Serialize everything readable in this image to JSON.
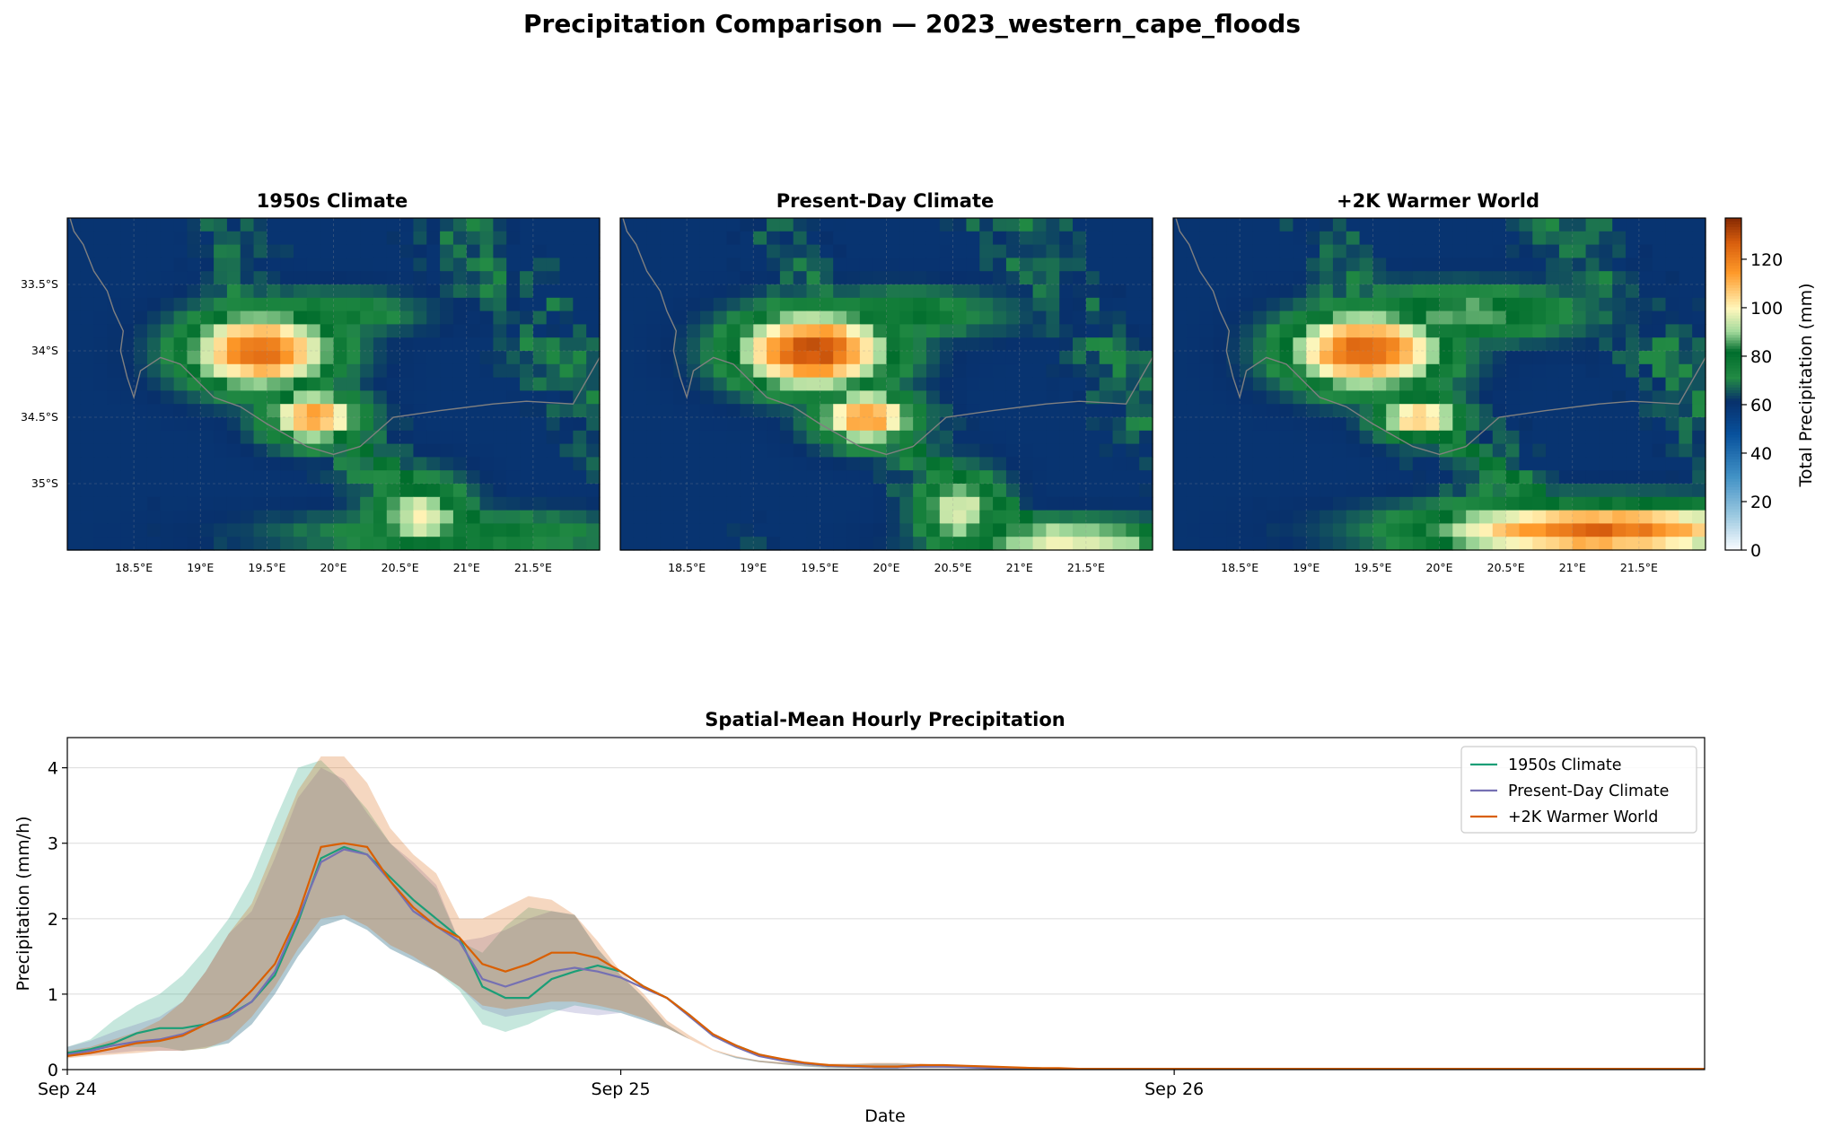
{
  "figure": {
    "title": "Precipitation Comparison — 2023_western_cape_floods"
  },
  "colors": {
    "1950s": "#1b9e77",
    "present": "#7570b3",
    "warmer": "#d95f02",
    "coast": "#808080"
  },
  "chart_data": [
    {
      "type": "heatmap",
      "title": "1950s Climate",
      "xticks": [
        "18.5°E",
        "19°E",
        "19.5°E",
        "20°E",
        "20.5°E",
        "21°E",
        "21.5°E"
      ],
      "yticks": [
        "33.5°S",
        "34°S",
        "34.5°S",
        "35°S"
      ],
      "lon_range": [
        18.0,
        22.0
      ],
      "lat_range": [
        -35.5,
        -33.0
      ],
      "colormap": "blue-green-yellow-orange",
      "blobs": [
        {
          "lon": 19.45,
          "lat": -34.0,
          "sx": 0.38,
          "sy": 0.2,
          "peak": 125
        },
        {
          "lon": 19.85,
          "lat": -34.5,
          "sx": 0.25,
          "sy": 0.14,
          "peak": 115
        },
        {
          "lon": 20.65,
          "lat": -35.25,
          "sx": 0.25,
          "sy": 0.2,
          "peak": 98
        },
        {
          "lon": 19.95,
          "lat": -33.72,
          "sx": 0.45,
          "sy": 0.12,
          "peak": 80
        },
        {
          "lon": 20.95,
          "lat": -35.38,
          "sx": 0.9,
          "sy": 0.12,
          "peak": 80
        }
      ],
      "colorbar": {
        "label": "Total Precipitation (mm)",
        "ticks": [
          0,
          20,
          40,
          60,
          80,
          100,
          120
        ],
        "range": [
          0,
          137
        ]
      }
    },
    {
      "type": "heatmap",
      "title": "Present-Day Climate",
      "xticks": [
        "18.5°E",
        "19°E",
        "19.5°E",
        "20°E",
        "20.5°E",
        "21°E",
        "21.5°E"
      ],
      "yticks": [],
      "lon_range": [
        18.0,
        22.0
      ],
      "lat_range": [
        -35.5,
        -33.0
      ],
      "colormap": "blue-green-yellow-orange",
      "blobs": [
        {
          "lon": 19.45,
          "lat": -34.0,
          "sx": 0.4,
          "sy": 0.2,
          "peak": 132
        },
        {
          "lon": 19.85,
          "lat": -34.5,
          "sx": 0.25,
          "sy": 0.14,
          "peak": 118
        },
        {
          "lon": 20.55,
          "lat": -35.2,
          "sx": 0.22,
          "sy": 0.2,
          "peak": 98
        },
        {
          "lon": 20.1,
          "lat": -33.72,
          "sx": 0.55,
          "sy": 0.13,
          "peak": 80
        },
        {
          "lon": 21.4,
          "lat": -35.42,
          "sx": 0.6,
          "sy": 0.1,
          "peak": 100
        }
      ],
      "colorbar": {
        "label": "Total Precipitation (mm)",
        "ticks": [
          0,
          20,
          40,
          60,
          80,
          100,
          120
        ],
        "range": [
          0,
          137
        ]
      }
    },
    {
      "type": "heatmap",
      "title": "+2K Warmer World",
      "xticks": [
        "18.5°E",
        "19°E",
        "19.5°E",
        "20°E",
        "20.5°E",
        "21°E",
        "21.5°E"
      ],
      "yticks": [],
      "lon_range": [
        18.0,
        22.0
      ],
      "lat_range": [
        -35.5,
        -33.0
      ],
      "colormap": "blue-green-yellow-orange",
      "blobs": [
        {
          "lon": 19.45,
          "lat": -34.0,
          "sx": 0.4,
          "sy": 0.2,
          "peak": 128
        },
        {
          "lon": 19.85,
          "lat": -34.5,
          "sx": 0.22,
          "sy": 0.12,
          "peak": 110
        },
        {
          "lon": 20.2,
          "lat": -33.72,
          "sx": 0.6,
          "sy": 0.14,
          "peak": 88
        },
        {
          "lon": 21.2,
          "lat": -35.35,
          "sx": 0.9,
          "sy": 0.14,
          "peak": 125
        }
      ],
      "colorbar": {
        "label": "Total Precipitation (mm)",
        "ticks": [
          0,
          20,
          40,
          60,
          80,
          100,
          120
        ],
        "range": [
          0,
          137
        ]
      }
    },
    {
      "type": "line",
      "title": "Spatial-Mean Hourly Precipitation",
      "xlabel": "Date",
      "ylabel": "Precipitation (mm/h)",
      "xticks": [
        "Sep 24",
        "Sep 25",
        "Sep 26"
      ],
      "xtick_hours": [
        0,
        24,
        48
      ],
      "xlim": [
        0,
        71
      ],
      "yticks": [
        0,
        1,
        2,
        3,
        4
      ],
      "ylim": [
        0,
        4.4
      ],
      "legend_position": "top-right",
      "grid": "y",
      "x_hours": [
        0,
        1,
        2,
        3,
        4,
        5,
        6,
        7,
        8,
        9,
        10,
        11,
        12,
        13,
        14,
        15,
        16,
        17,
        18,
        19,
        20,
        21,
        22,
        23,
        24,
        25,
        26,
        27,
        28,
        29,
        30,
        31,
        32,
        33,
        34,
        35,
        36,
        37,
        38,
        39,
        40,
        41,
        42,
        43,
        44,
        45,
        46,
        47,
        48,
        49,
        50,
        51,
        52,
        53,
        54,
        55,
        56,
        57,
        58,
        59,
        60,
        61,
        62,
        63,
        64,
        65,
        66,
        67,
        68,
        69,
        70,
        71
      ],
      "series": [
        {
          "name": "1950s Climate",
          "color": "#1b9e77",
          "values": [
            0.22,
            0.27,
            0.35,
            0.48,
            0.55,
            0.55,
            0.6,
            0.72,
            0.9,
            1.25,
            1.95,
            2.8,
            2.95,
            2.85,
            2.55,
            2.25,
            2.0,
            1.75,
            1.1,
            0.95,
            0.95,
            1.2,
            1.3,
            1.38,
            1.3,
            1.1,
            0.95,
            0.72,
            0.45,
            0.32,
            0.2,
            0.13,
            0.08,
            0.05,
            0.04,
            0.03,
            0.03,
            0.05,
            0.05,
            0.04,
            0.03,
            0.02,
            0.02,
            0.01,
            0.01,
            0.01,
            0.01,
            0.01,
            0.01,
            0.01,
            0.01,
            0.01,
            0.01,
            0.01,
            0.01,
            0.01,
            0.01,
            0.01,
            0.01,
            0.01,
            0.01,
            0.01,
            0.01,
            0.01,
            0.01,
            0.01,
            0.01,
            0.01,
            0.01,
            0.01,
            0.01,
            0.01
          ],
          "band_low": [
            0.2,
            0.25,
            0.3,
            0.3,
            0.3,
            0.25,
            0.28,
            0.35,
            0.6,
            1.0,
            1.5,
            1.9,
            2.0,
            1.85,
            1.6,
            1.45,
            1.3,
            1.05,
            0.6,
            0.5,
            0.6,
            0.75,
            0.85,
            0.8,
            0.75,
            0.65,
            0.55,
            0.4,
            0.25,
            0.15,
            0.1,
            0.07,
            0.04,
            0.02,
            0.02,
            0.02,
            0.02,
            0.02,
            0.02,
            0.02,
            0.01,
            0.01,
            0.01,
            0.0,
            0.0,
            0.0,
            0.0,
            0.0,
            0.0,
            0.0,
            0.0,
            0.0,
            0.0,
            0.0,
            0.0,
            0.0,
            0.0,
            0.0,
            0.0,
            0.0,
            0.0,
            0.0,
            0.0,
            0.0,
            0.0,
            0.0,
            0.0,
            0.0,
            0.0,
            0.0,
            0.0,
            0.0
          ],
          "band_high": [
            0.3,
            0.4,
            0.65,
            0.85,
            1.0,
            1.25,
            1.6,
            2.0,
            2.55,
            3.3,
            4.0,
            4.1,
            3.8,
            3.45,
            3.0,
            2.7,
            2.4,
            1.7,
            1.55,
            1.9,
            2.15,
            2.1,
            2.05,
            1.6,
            1.25,
            0.95,
            0.6,
            0.4,
            0.25,
            0.17,
            0.12,
            0.09,
            0.08,
            0.07,
            0.07,
            0.08,
            0.08,
            0.07,
            0.05,
            0.04,
            0.03,
            0.02,
            0.02,
            0.02,
            0.02,
            0.02,
            0.02,
            0.02,
            0.02,
            0.02,
            0.02,
            0.02,
            0.02,
            0.02,
            0.02,
            0.02,
            0.02,
            0.02,
            0.02,
            0.02,
            0.02,
            0.02,
            0.02,
            0.02,
            0.02,
            0.02,
            0.02,
            0.02,
            0.02,
            0.02,
            0.02,
            0.02
          ]
        },
        {
          "name": "Present-Day Climate",
          "color": "#7570b3",
          "values": [
            0.2,
            0.25,
            0.32,
            0.37,
            0.4,
            0.47,
            0.6,
            0.7,
            0.9,
            1.3,
            2.0,
            2.75,
            2.92,
            2.85,
            2.5,
            2.1,
            1.9,
            1.7,
            1.2,
            1.1,
            1.2,
            1.3,
            1.35,
            1.3,
            1.22,
            1.08,
            0.95,
            0.7,
            0.45,
            0.3,
            0.18,
            0.12,
            0.08,
            0.05,
            0.04,
            0.03,
            0.03,
            0.04,
            0.04,
            0.03,
            0.02,
            0.02,
            0.02,
            0.01,
            0.01,
            0.01,
            0.01,
            0.01,
            0.01,
            0.01,
            0.01,
            0.01,
            0.01,
            0.01,
            0.01,
            0.01,
            0.01,
            0.01,
            0.01,
            0.01,
            0.01,
            0.01,
            0.01,
            0.01,
            0.01,
            0.01,
            0.01,
            0.01,
            0.01,
            0.01,
            0.01,
            0.01
          ],
          "band_low": [
            0.18,
            0.2,
            0.22,
            0.25,
            0.25,
            0.25,
            0.3,
            0.35,
            0.6,
            1.0,
            1.5,
            1.9,
            2.0,
            1.85,
            1.6,
            1.45,
            1.3,
            1.1,
            0.8,
            0.7,
            0.75,
            0.8,
            0.75,
            0.72,
            0.75,
            0.65,
            0.55,
            0.4,
            0.25,
            0.15,
            0.1,
            0.07,
            0.04,
            0.02,
            0.02,
            0.02,
            0.02,
            0.02,
            0.02,
            0.02,
            0.01,
            0.01,
            0.01,
            0.0,
            0.0,
            0.0,
            0.0,
            0.0,
            0.0,
            0.0,
            0.0,
            0.0,
            0.0,
            0.0,
            0.0,
            0.0,
            0.0,
            0.0,
            0.0,
            0.0,
            0.0,
            0.0,
            0.0,
            0.0,
            0.0,
            0.0,
            0.0,
            0.0,
            0.0,
            0.0,
            0.0,
            0.0
          ],
          "band_high": [
            0.3,
            0.38,
            0.5,
            0.6,
            0.7,
            0.9,
            1.3,
            1.8,
            2.1,
            2.8,
            3.6,
            4.0,
            3.85,
            3.4,
            3.0,
            2.75,
            2.45,
            1.7,
            1.75,
            1.85,
            2.0,
            2.1,
            2.05,
            1.6,
            1.25,
            0.95,
            0.6,
            0.4,
            0.25,
            0.17,
            0.12,
            0.09,
            0.08,
            0.07,
            0.07,
            0.08,
            0.08,
            0.07,
            0.05,
            0.04,
            0.03,
            0.02,
            0.02,
            0.02,
            0.02,
            0.02,
            0.02,
            0.02,
            0.02,
            0.02,
            0.02,
            0.02,
            0.02,
            0.02,
            0.02,
            0.02,
            0.02,
            0.02,
            0.02,
            0.02,
            0.02,
            0.02,
            0.02,
            0.02,
            0.02,
            0.02,
            0.02,
            0.02,
            0.02,
            0.02,
            0.02,
            0.02
          ]
        },
        {
          "name": "+2K Warmer World",
          "color": "#d95f02",
          "values": [
            0.18,
            0.22,
            0.28,
            0.35,
            0.38,
            0.45,
            0.6,
            0.75,
            1.05,
            1.4,
            2.05,
            2.95,
            3.0,
            2.95,
            2.5,
            2.15,
            1.9,
            1.75,
            1.4,
            1.3,
            1.4,
            1.55,
            1.55,
            1.48,
            1.3,
            1.1,
            0.95,
            0.72,
            0.47,
            0.32,
            0.2,
            0.14,
            0.09,
            0.06,
            0.05,
            0.04,
            0.04,
            0.06,
            0.06,
            0.05,
            0.04,
            0.03,
            0.02,
            0.02,
            0.01,
            0.01,
            0.01,
            0.01,
            0.01,
            0.01,
            0.01,
            0.01,
            0.01,
            0.01,
            0.01,
            0.01,
            0.01,
            0.01,
            0.01,
            0.01,
            0.01,
            0.01,
            0.01,
            0.01,
            0.01,
            0.01,
            0.01,
            0.01,
            0.01,
            0.01,
            0.01,
            0.01
          ],
          "band_low": [
            0.15,
            0.18,
            0.2,
            0.22,
            0.25,
            0.25,
            0.28,
            0.4,
            0.7,
            1.1,
            1.6,
            2.0,
            2.05,
            1.9,
            1.65,
            1.5,
            1.3,
            1.1,
            0.85,
            0.8,
            0.85,
            0.9,
            0.9,
            0.85,
            0.78,
            0.68,
            0.55,
            0.4,
            0.25,
            0.16,
            0.1,
            0.07,
            0.05,
            0.03,
            0.02,
            0.02,
            0.02,
            0.02,
            0.02,
            0.02,
            0.01,
            0.01,
            0.01,
            0.0,
            0.0,
            0.0,
            0.0,
            0.0,
            0.0,
            0.0,
            0.0,
            0.0,
            0.0,
            0.0,
            0.0,
            0.0,
            0.0,
            0.0,
            0.0,
            0.0,
            0.0,
            0.0,
            0.0,
            0.0,
            0.0,
            0.0,
            0.0,
            0.0,
            0.0,
            0.0,
            0.0,
            0.0
          ],
          "band_high": [
            0.25,
            0.3,
            0.4,
            0.5,
            0.65,
            0.9,
            1.3,
            1.8,
            2.2,
            2.95,
            3.7,
            4.15,
            4.15,
            3.8,
            3.2,
            2.85,
            2.6,
            2.0,
            2.0,
            2.15,
            2.3,
            2.25,
            2.05,
            1.7,
            1.3,
            1.0,
            0.65,
            0.45,
            0.27,
            0.18,
            0.12,
            0.1,
            0.09,
            0.08,
            0.08,
            0.09,
            0.09,
            0.08,
            0.06,
            0.05,
            0.04,
            0.03,
            0.02,
            0.02,
            0.02,
            0.02,
            0.02,
            0.02,
            0.02,
            0.02,
            0.02,
            0.02,
            0.02,
            0.02,
            0.02,
            0.02,
            0.02,
            0.02,
            0.02,
            0.02,
            0.02,
            0.02,
            0.02,
            0.02,
            0.02,
            0.02,
            0.02,
            0.02,
            0.02,
            0.02,
            0.02,
            0.02
          ]
        }
      ]
    }
  ]
}
